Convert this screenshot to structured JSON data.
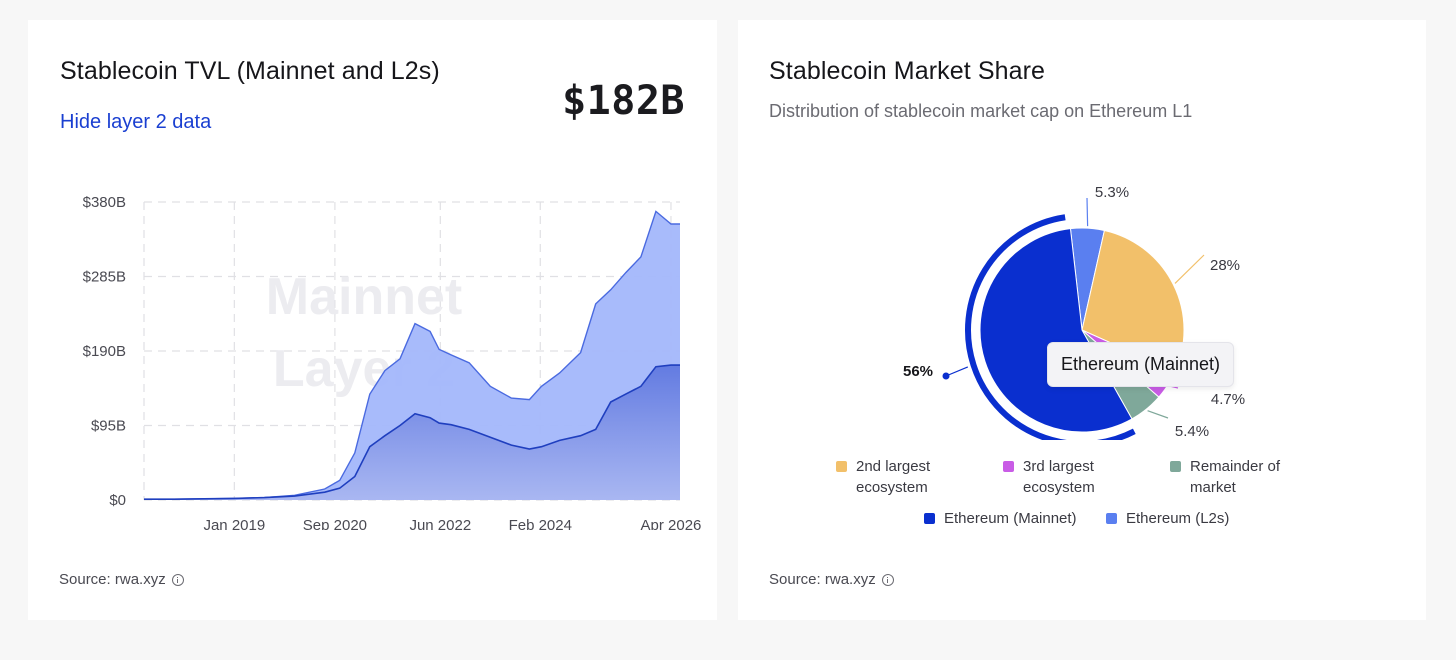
{
  "left_card": {
    "title": "Stablecoin TVL (Mainnet and L2s)",
    "big_value": "$182B",
    "toggle_label": "Hide layer 2 data",
    "watermark_line1": "Mainnet",
    "watermark_line2": "Layer 2",
    "source": "Source: rwa.xyz"
  },
  "right_card": {
    "title": "Stablecoin Market Share",
    "subtitle": "Distribution of stablecoin market cap on Ethereum L1",
    "tooltip": "Ethereum (Mainnet)",
    "source": "Source: rwa.xyz",
    "legend": [
      {
        "label": "2nd largest ecosystem",
        "color": "#f2c06a"
      },
      {
        "label": "3rd largest ecosystem",
        "color": "#c95ce6"
      },
      {
        "label": "Remainder of market",
        "color": "#7fa89a"
      },
      {
        "label": "Ethereum (Mainnet)",
        "color": "#0a2fcf"
      },
      {
        "label": "Ethereum (L2s)",
        "color": "#5a7ff0"
      }
    ]
  },
  "chart_data": [
    {
      "type": "area",
      "title": "Stablecoin TVL (Mainnet and L2s)",
      "x_ticks": [
        "Jan 2019",
        "Sep 2020",
        "Jun 2022",
        "Feb 2024",
        "Apr 2026"
      ],
      "y_ticks": [
        "$0",
        "$95B",
        "$190B",
        "$285B",
        "$380B"
      ],
      "ylim": [
        0,
        380
      ],
      "x": [
        2017.5,
        2018.0,
        2018.5,
        2019.0,
        2019.5,
        2020.0,
        2020.5,
        2020.75,
        2021.0,
        2021.25,
        2021.5,
        2021.75,
        2022.0,
        2022.25,
        2022.4,
        2022.6,
        2022.9,
        2023.25,
        2023.6,
        2023.9,
        2024.1,
        2024.4,
        2024.75,
        2025.0,
        2025.25,
        2025.5,
        2025.75,
        2026.0,
        2026.25,
        2026.4
      ],
      "series": [
        {
          "name": "Mainnet",
          "color": "#3f5fd6",
          "values": [
            1,
            1,
            1.5,
            2,
            3,
            5,
            10,
            15,
            30,
            68,
            82,
            95,
            110,
            105,
            98,
            96,
            90,
            80,
            70,
            65,
            68,
            76,
            82,
            90,
            125,
            135,
            145,
            170,
            172,
            172
          ]
        },
        {
          "name": "Layer 2",
          "color": "#a3b7fb",
          "values": [
            1,
            1,
            1.5,
            2,
            3,
            6,
            14,
            25,
            60,
            135,
            165,
            180,
            225,
            215,
            192,
            185,
            175,
            145,
            130,
            128,
            145,
            162,
            188,
            250,
            268,
            290,
            310,
            368,
            352,
            352
          ]
        }
      ],
      "grid": true
    },
    {
      "type": "pie",
      "title": "Stablecoin Market Share",
      "slices": [
        {
          "label": "Ethereum (L2s)",
          "value": 5.3,
          "display": "5.3%",
          "color": "#5a7ff0"
        },
        {
          "label": "2nd largest ecosystem",
          "value": 28,
          "display": "28%",
          "color": "#f2c06a"
        },
        {
          "label": "3rd largest ecosystem",
          "value": 4.7,
          "display": "4.7%",
          "color": "#c95ce6"
        },
        {
          "label": "Remainder of market",
          "value": 5.4,
          "display": "5.4%",
          "color": "#7fa89a"
        },
        {
          "label": "Ethereum (Mainnet)",
          "value": 56,
          "display": "56%",
          "color": "#0a2fcf",
          "highlighted": true
        }
      ]
    }
  ]
}
